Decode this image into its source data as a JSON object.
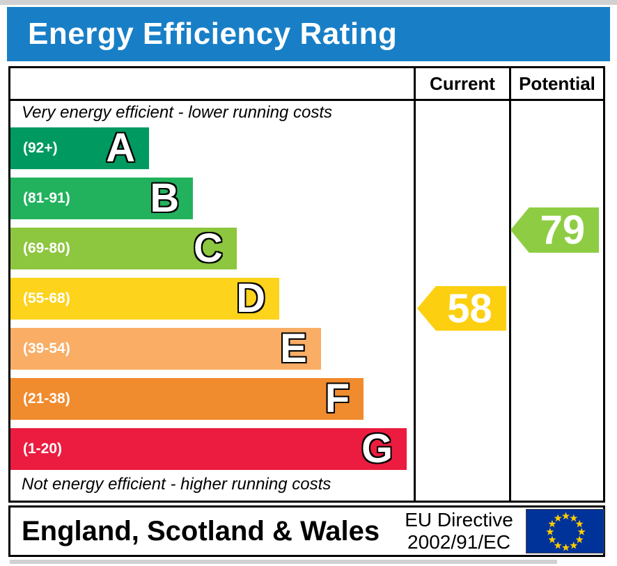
{
  "title": "Energy Efficiency Rating",
  "colors": {
    "banner_bg": "#187fc7",
    "border": "#000000"
  },
  "table": {
    "columns": {
      "current": "Current",
      "potential": "Potential"
    },
    "top_note": "Very energy efficient - lower running costs",
    "bottom_note": "Not energy efficient - higher running costs",
    "bands": [
      {
        "letter": "A",
        "range": "(92+)",
        "color": "#009a60",
        "width_pct": "34.4%"
      },
      {
        "letter": "B",
        "range": "(81-91)",
        "color": "#22b25e",
        "width_pct": "45.3%"
      },
      {
        "letter": "C",
        "range": "(69-80)",
        "color": "#8dc63f",
        "width_pct": "56.1%"
      },
      {
        "letter": "D",
        "range": "(55-68)",
        "color": "#fdd31c",
        "width_pct": "66.7%"
      },
      {
        "letter": "E",
        "range": "(39-54)",
        "color": "#f9ad65",
        "width_pct": "77.0%"
      },
      {
        "letter": "F",
        "range": "(21-38)",
        "color": "#f08b2e",
        "width_pct": "87.6%"
      },
      {
        "letter": "G",
        "range": "(1-20)",
        "color": "#ec1c40",
        "width_pct": "98.3%"
      }
    ]
  },
  "ratings": {
    "current": {
      "label": "Current",
      "value": 58,
      "band": "D",
      "color": "#fcd010"
    },
    "potential": {
      "label": "Potential",
      "value": 79,
      "band": "C",
      "color": "#8ecd43"
    }
  },
  "footer": {
    "region": "England, Scotland & Wales",
    "directive_line1": "EU Directive",
    "directive_line2": "2002/91/EC",
    "flag": {
      "star_count": 12,
      "bg_color": "#003399",
      "star_color": "#ffcc00"
    }
  },
  "chart_data": {
    "type": "bar",
    "title": "Energy Efficiency Rating",
    "categories": [
      "A",
      "B",
      "C",
      "D",
      "E",
      "F",
      "G"
    ],
    "band_ranges": [
      "92+",
      "81-91",
      "69-80",
      "55-68",
      "39-54",
      "21-38",
      "1-20"
    ],
    "band_colors": [
      "#009a60",
      "#22b25e",
      "#8dc63f",
      "#fdd31c",
      "#f9ad65",
      "#f08b2e",
      "#ec1c40"
    ],
    "values": [
      34.4,
      45.3,
      56.1,
      66.7,
      77.0,
      87.6,
      98.3
    ],
    "value_note": "bar visual extent as % of scale column width",
    "markers": [
      {
        "name": "Current",
        "value": 58,
        "band": "D",
        "color": "#fcd010"
      },
      {
        "name": "Potential",
        "value": 79,
        "band": "C",
        "color": "#8ecd43"
      }
    ],
    "xlabel": "",
    "ylabel": "",
    "top_annotation": "Very energy efficient - lower running costs",
    "bottom_annotation": "Not energy efficient - higher running costs",
    "legend_position": "none",
    "grid": false,
    "footer_region": "England, Scotland & Wales",
    "footer_directive": "EU Directive 2002/91/EC"
  }
}
